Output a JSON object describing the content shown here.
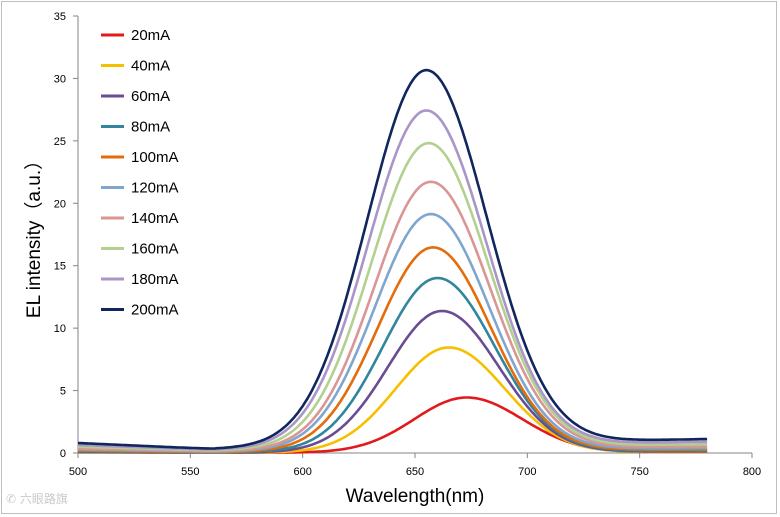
{
  "chart_data": {
    "type": "line",
    "title": "",
    "xlabel": "Wavelength(nm)",
    "ylabel": "EL  intensity（a.u.）",
    "xlim": [
      500,
      800
    ],
    "ylim": [
      0,
      35
    ],
    "xticks": [
      500,
      550,
      600,
      650,
      700,
      750,
      800
    ],
    "yticks": [
      0,
      5,
      10,
      15,
      20,
      25,
      30,
      35
    ],
    "x_data_range": [
      500,
      780
    ],
    "legend_position": "top-left",
    "grid": false,
    "series": [
      {
        "name": "20mA",
        "color": "#e31a1c",
        "peak_wavelength": 673,
        "peak": 4.4
      },
      {
        "name": "40mA",
        "color": "#f5c000",
        "peak_wavelength": 665,
        "peak": 8.4
      },
      {
        "name": "60mA",
        "color": "#6a4c93",
        "peak_wavelength": 662,
        "peak": 11.3
      },
      {
        "name": "80mA",
        "color": "#31859c",
        "peak_wavelength": 660,
        "peak": 13.9
      },
      {
        "name": "100mA",
        "color": "#e46c0a",
        "peak_wavelength": 658,
        "peak": 16.3
      },
      {
        "name": "120mA",
        "color": "#7fa6cf",
        "peak_wavelength": 657,
        "peak": 18.9
      },
      {
        "name": "140mA",
        "color": "#d99694",
        "peak_wavelength": 657,
        "peak": 21.4
      },
      {
        "name": "160mA",
        "color": "#b3d08f",
        "peak_wavelength": 656,
        "peak": 24.4
      },
      {
        "name": "180mA",
        "color": "#a995c7",
        "peak_wavelength": 655,
        "peak": 26.9
      },
      {
        "name": "200mA",
        "color": "#10265c",
        "peak_wavelength": 655,
        "peak": 30.0
      }
    ]
  },
  "watermark_text": "六眼路旗"
}
